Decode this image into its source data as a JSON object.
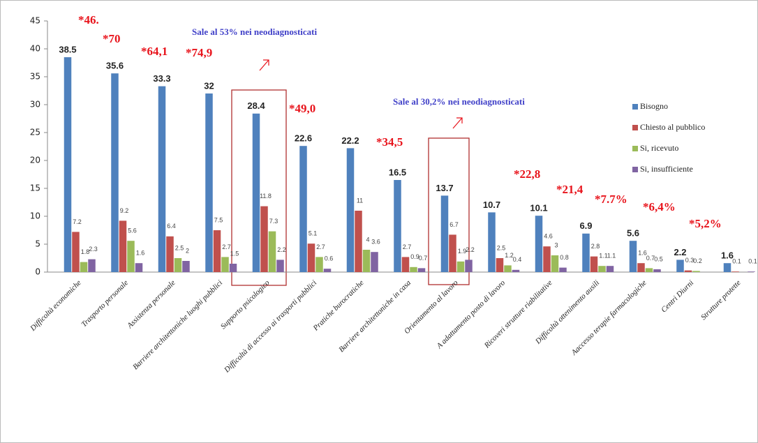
{
  "chart_data": {
    "type": "bar",
    "categories": [
      "Difficoltà economiche",
      "Trasporto personale",
      "Assistenza personale",
      "Barriere architettoniche luoghi pubblici",
      "Supporto psicologico",
      "Difficoltà di accesso ai trasporti pubblici",
      "Pratiche burocratiche",
      "Barriere architettoniche in casa",
      "Orientamento al lavoro",
      "A adattamento posto di lavoro",
      "Ricoveri strutture riabilitative",
      "Difficoltà ottenimento ausili",
      "Aaccesso terapie farmacologiche",
      "Centri Diurni",
      "Strutture protette"
    ],
    "series": [
      {
        "name": "Bisogno",
        "color": "#4f81bd",
        "values": [
          38.5,
          35.6,
          33.3,
          32,
          28.4,
          22.6,
          22.2,
          16.5,
          13.7,
          10.7,
          10.1,
          6.9,
          5.6,
          2.2,
          1.6
        ]
      },
      {
        "name": "Chiesto al pubblico",
        "color": "#c0504d",
        "values": [
          7.2,
          9.2,
          6.4,
          7.5,
          11.8,
          5.1,
          11,
          2.7,
          6.7,
          2.5,
          4.6,
          2.8,
          1.6,
          0.3,
          0.1
        ]
      },
      {
        "name": "Si, ricevuto",
        "color": "#9bbb59",
        "values": [
          1.8,
          5.6,
          2.5,
          2.7,
          7.3,
          2.7,
          4,
          0.9,
          1.9,
          1.2,
          3,
          1.1,
          0.7,
          0.2,
          null
        ]
      },
      {
        "name": "Si, insufficiente",
        "color": "#8064a2",
        "values": [
          2.3,
          1.6,
          2,
          1.5,
          2.2,
          0.6,
          3.6,
          0.7,
          2.2,
          0.4,
          0.8,
          1.1,
          0.5,
          null,
          0.1
        ]
      }
    ],
    "ylim": [
      0,
      45
    ],
    "yticks": [
      0,
      5,
      10,
      15,
      20,
      25,
      30,
      35,
      40,
      45
    ],
    "legend": "right",
    "red_annotations": [
      "*46.",
      "*70",
      "*64,1",
      "*74,9",
      "*49,0",
      "*34,5",
      "*22,8",
      "*21,4",
      "*7.7%",
      "*6,4%",
      "*5,2%"
    ],
    "blue_annotations": [
      "Sale al 53% nei neodiagnosticati",
      "Sale al 30,2% nei neodiagnosticati"
    ]
  }
}
